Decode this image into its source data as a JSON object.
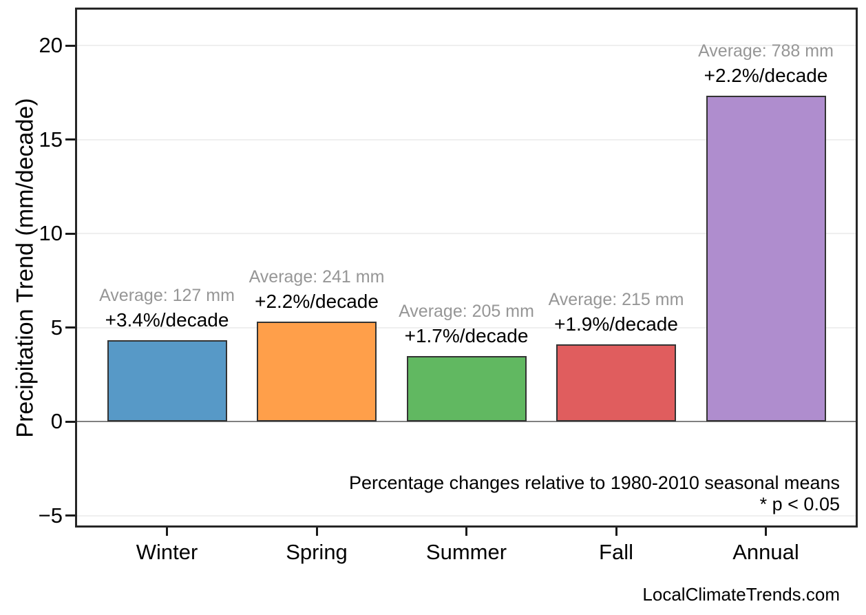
{
  "chart_data": {
    "type": "bar",
    "title": "",
    "ylabel": "Precipitation Trend (mm/decade)",
    "categories": [
      "Winter",
      "Spring",
      "Summer",
      "Fall",
      "Annual"
    ],
    "values": [
      4.32,
      5.3,
      3.49,
      4.09,
      17.34
    ],
    "bar_colors": [
      "#5799C7",
      "#FF9F4A",
      "#61B861",
      "#E05D5E",
      "#AF8DCE"
    ],
    "bar_edge_color": "#333333",
    "annotations": [
      {
        "average": "Average: 127 mm",
        "trend": "+3.4%/decade"
      },
      {
        "average": "Average: 241 mm",
        "trend": "+2.2%/decade"
      },
      {
        "average": "Average: 205 mm",
        "trend": "+1.7%/decade"
      },
      {
        "average": "Average: 215 mm",
        "trend": "+1.9%/decade"
      },
      {
        "average": "Average: 788 mm",
        "trend": "+2.2%/decade"
      }
    ],
    "yticks": [
      -5,
      0,
      5,
      10,
      15,
      20
    ],
    "ytick_labels": [
      "−5",
      "0",
      "5",
      "10",
      "15",
      "20"
    ],
    "ylim": [
      -5.4,
      21.9
    ],
    "grid": "horizontal",
    "legend": "none",
    "footnote_line1": "Percentage changes relative to 1980-2010 seasonal means",
    "footnote_line2": "* p < 0.05",
    "watermark": "LocalClimateTrends.com",
    "colors": {
      "annotation_gray": "#969696",
      "annotation_black": "#000000",
      "zero_line": "#808080",
      "gridline": "#efefef",
      "spine": "#262626"
    }
  }
}
